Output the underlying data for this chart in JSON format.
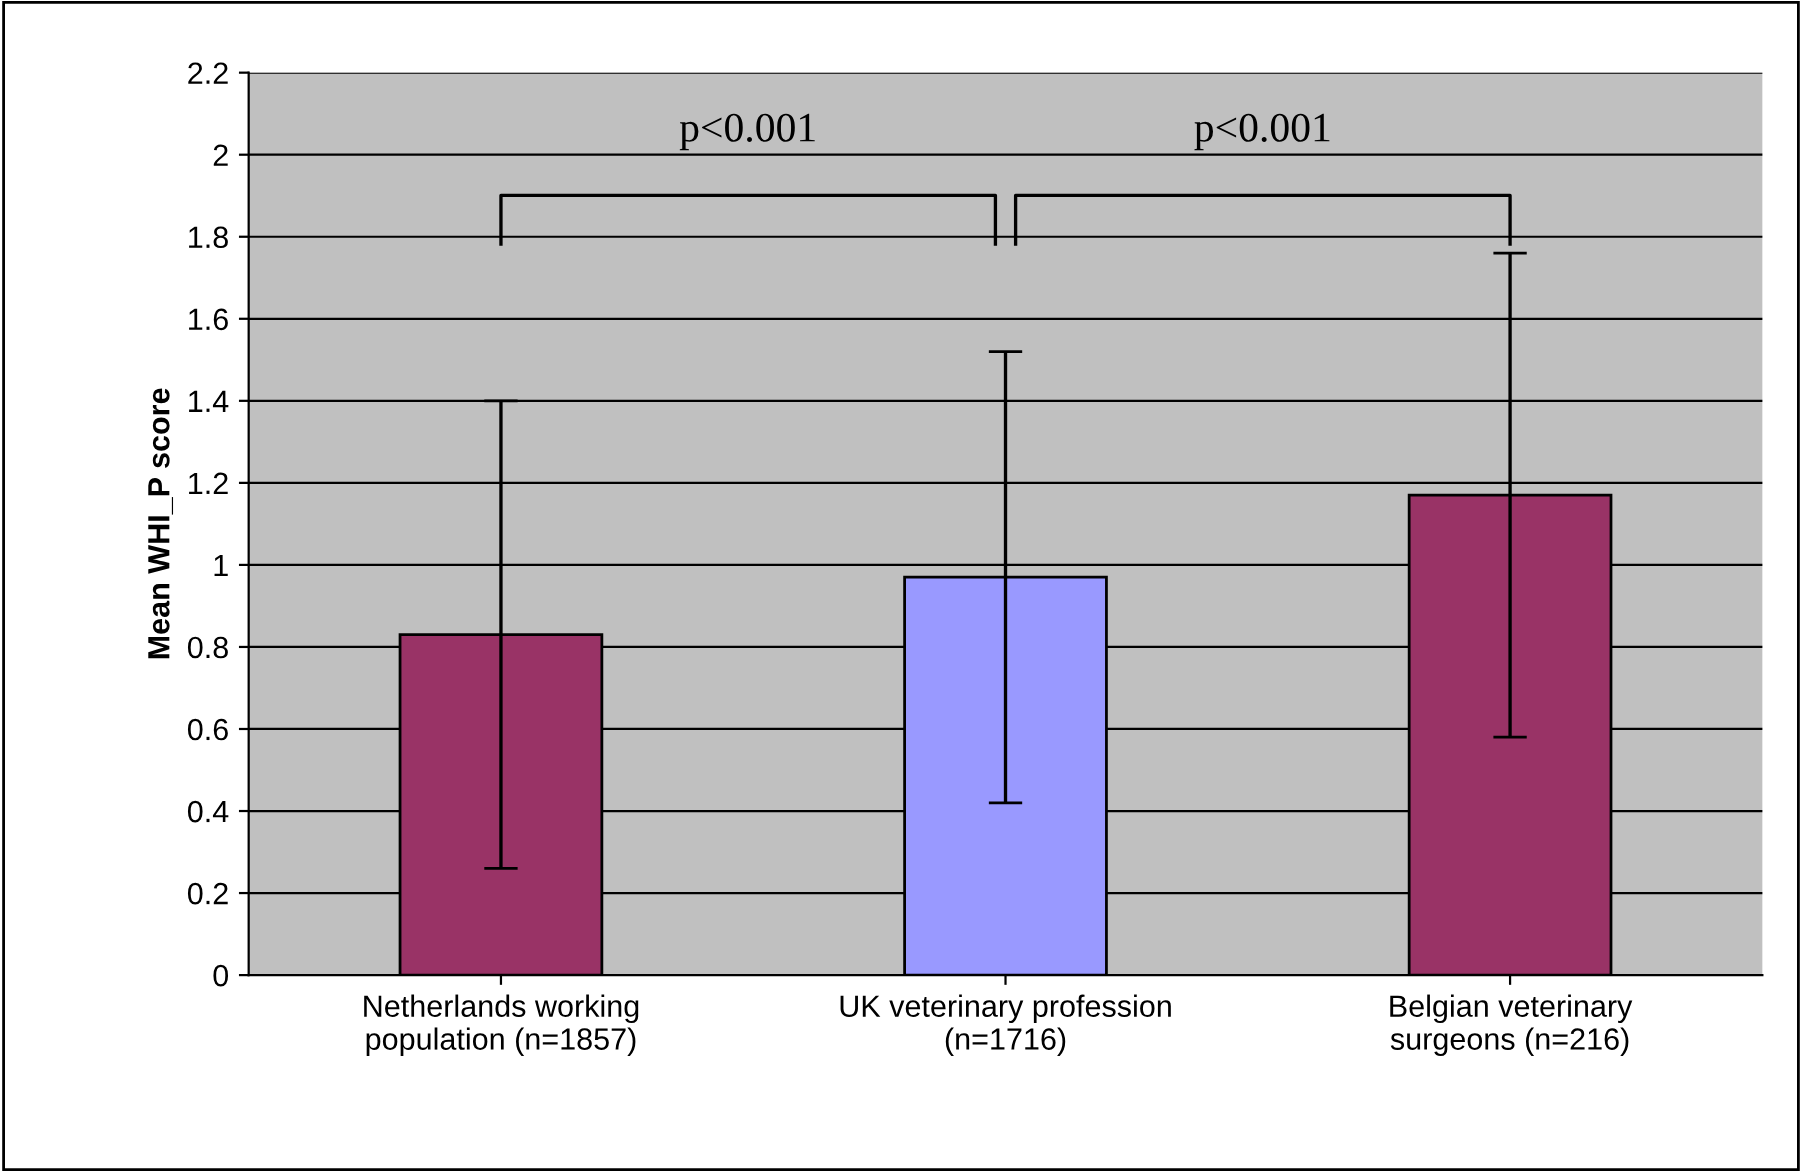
{
  "chart_data": {
    "type": "bar",
    "categories": [
      "Netherlands working\npopulation (n=1857)",
      "UK veterinary profession\n(n=1716)",
      "Belgian veterinary\nsurgeons (n=216)"
    ],
    "values": [
      0.83,
      0.97,
      1.17
    ],
    "errors": [
      0.57,
      0.55,
      0.59
    ],
    "colors": [
      "#993366",
      "#9999ff",
      "#993366"
    ],
    "ylabel": "Mean WHI_P score",
    "ylim": [
      0,
      2.2
    ],
    "yticks": [
      0,
      0.2,
      0.4,
      0.6,
      0.8,
      1,
      1.2,
      1.4,
      1.6,
      1.8,
      2,
      2.2
    ],
    "grid": "y",
    "annotations": [
      "p<0.001",
      "p<0.001"
    ]
  }
}
